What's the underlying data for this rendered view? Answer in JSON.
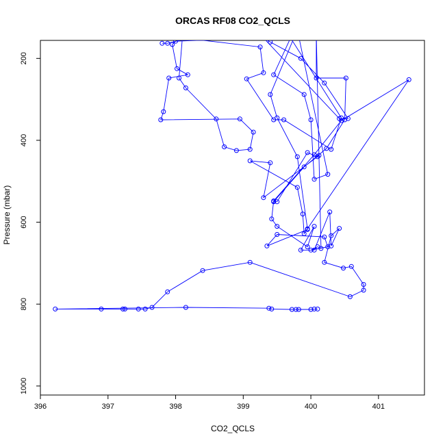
{
  "chart_data": {
    "type": "scatter",
    "title": "ORCAS RF08 CO2_QCLS",
    "xlabel": "CO2_QCLS",
    "ylabel": "Pressure (mbar)",
    "xlim": [
      396.0,
      401.68
    ],
    "ylim": [
      1022,
      156
    ],
    "y_inverted": true,
    "x_ticks": [
      396,
      397,
      398,
      399,
      400,
      401
    ],
    "y_ticks": [
      200,
      400,
      600,
      800,
      1000
    ],
    "grid": false,
    "legend": "none",
    "series_color": "#0000ff",
    "points": [
      [
        397.8,
        163
      ],
      [
        397.88,
        163
      ],
      [
        398.2,
        150
      ],
      [
        398.6,
        130
      ],
      [
        399.1,
        120
      ],
      [
        399.2,
        140
      ],
      [
        399.4,
        160
      ],
      [
        399.85,
        200
      ],
      [
        400.2,
        260
      ],
      [
        400.55,
        347
      ],
      [
        400.42,
        347
      ],
      [
        399.3,
        150
      ],
      [
        398.0,
        158
      ],
      [
        397.95,
        166
      ],
      [
        398.02,
        225
      ],
      [
        398.18,
        240
      ],
      [
        397.9,
        248
      ],
      [
        397.82,
        330
      ],
      [
        397.78,
        350
      ],
      [
        398.95,
        348
      ],
      [
        399.15,
        380
      ],
      [
        399.1,
        422
      ],
      [
        398.9,
        425
      ],
      [
        398.72,
        416
      ],
      [
        398.6,
        348
      ],
      [
        398.15,
        272
      ],
      [
        398.05,
        248
      ],
      [
        398.1,
        150
      ],
      [
        399.25,
        172
      ],
      [
        399.3,
        235
      ],
      [
        399.05,
        250
      ],
      [
        399.45,
        350
      ],
      [
        399.6,
        350
      ],
      [
        400.3,
        422
      ],
      [
        400.45,
        345
      ],
      [
        399.7,
        150
      ],
      [
        399.45,
        240
      ],
      [
        399.9,
        288
      ],
      [
        400.0,
        350
      ],
      [
        400.05,
        495
      ],
      [
        400.25,
        483
      ],
      [
        399.8,
        130
      ],
      [
        399.4,
        288
      ],
      [
        399.5,
        345
      ],
      [
        399.8,
        440
      ],
      [
        399.95,
        616
      ],
      [
        399.95,
        618
      ],
      [
        399.35,
        658
      ],
      [
        399.5,
        630
      ],
      [
        400.2,
        636
      ],
      [
        400.25,
        660
      ],
      [
        400.0,
        668
      ],
      [
        400.1,
        660
      ],
      [
        400.15,
        664
      ],
      [
        400.08,
        140
      ],
      [
        400.08,
        248
      ],
      [
        400.52,
        248
      ],
      [
        400.5,
        350
      ],
      [
        400.23,
        420
      ],
      [
        399.9,
        465
      ],
      [
        399.45,
        550
      ],
      [
        399.5,
        550
      ],
      [
        399.95,
        430
      ],
      [
        400.1,
        440
      ],
      [
        400.12,
        437
      ],
      [
        399.3,
        540
      ],
      [
        399.4,
        455
      ],
      [
        399.1,
        450
      ],
      [
        399.8,
        515
      ],
      [
        399.88,
        580
      ],
      [
        399.9,
        628
      ],
      [
        401.45,
        252
      ],
      [
        400.45,
        352
      ],
      [
        400.05,
        435
      ],
      [
        399.45,
        548
      ],
      [
        399.42,
        592
      ],
      [
        399.5,
        610
      ],
      [
        399.95,
        660
      ],
      [
        400.05,
        610
      ],
      [
        399.85,
        668
      ],
      [
        400.05,
        668
      ],
      [
        400.28,
        575
      ],
      [
        400.3,
        658
      ],
      [
        400.42,
        615
      ],
      [
        400.3,
        633
      ],
      [
        400.2,
        698
      ],
      [
        400.48,
        712
      ],
      [
        400.6,
        708
      ],
      [
        400.78,
        752
      ],
      [
        400.78,
        766
      ],
      [
        400.58,
        782
      ],
      [
        399.1,
        698
      ],
      [
        398.4,
        718
      ],
      [
        397.88,
        770
      ],
      [
        397.65,
        808
      ],
      [
        397.55,
        812
      ],
      [
        397.45,
        812
      ],
      [
        397.25,
        812
      ],
      [
        397.22,
        812
      ],
      [
        396.9,
        812
      ],
      [
        396.22,
        812
      ],
      [
        398.15,
        808
      ],
      [
        399.38,
        810
      ],
      [
        399.42,
        812
      ],
      [
        399.72,
        813
      ],
      [
        399.78,
        813
      ],
      [
        399.82,
        813
      ],
      [
        400.0,
        813
      ],
      [
        400.05,
        812
      ],
      [
        400.1,
        812
      ]
    ]
  }
}
